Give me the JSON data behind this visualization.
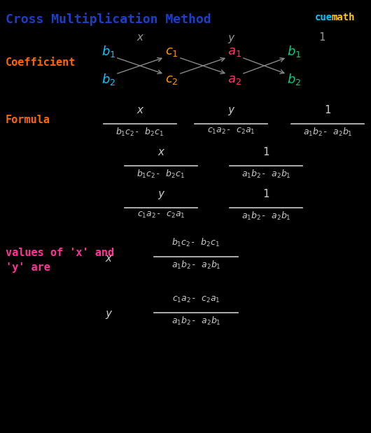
{
  "title": "Cross Multiplication Method",
  "title_color": "#1a3fcc",
  "background_color": "#000000",
  "fig_width": 5.3,
  "fig_height": 6.19,
  "coefficient_label": "Coefficient",
  "formula_label": "Formula",
  "values_label1": "values of 'x' and",
  "values_label2": "'y' are",
  "label_color": "#ff6600",
  "values_color": "#ff3399",
  "header_color": "#999999",
  "text_color": "#cccccc",
  "b1_color": "#00ccff",
  "b2_color": "#00ccff",
  "c1_color": "#ff9900",
  "c2_color": "#ff9900",
  "a1_color": "#ff3366",
  "a2_color": "#ff3366",
  "b1r_color": "#00cc88",
  "b2r_color": "#00cc88",
  "arrow_color": "#888888",
  "cuemath_color": "#ffcc00",
  "cuemath_blue": "#00ccff"
}
